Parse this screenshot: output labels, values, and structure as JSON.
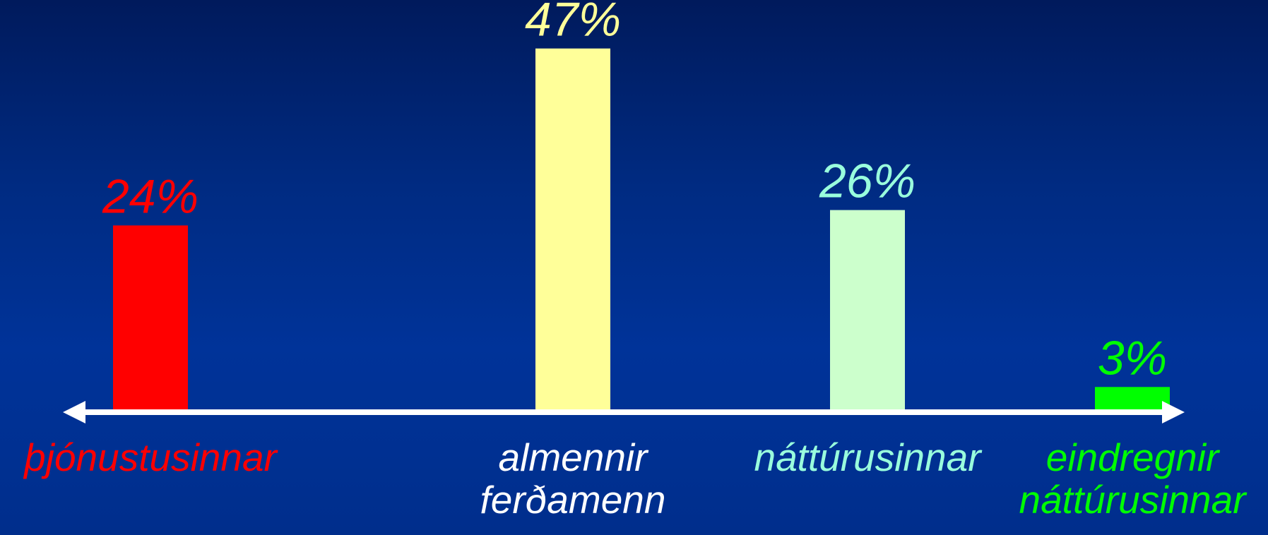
{
  "chart_data": {
    "type": "bar",
    "categories": [
      "þjónustusinnar",
      "almennir ferðamenn",
      "náttúrusinnar",
      "eindregnir náttúrusinnar"
    ],
    "values": [
      24,
      47,
      26,
      3
    ],
    "value_labels": [
      "24%",
      "47%",
      "26%",
      "3%"
    ],
    "colors": [
      "#ff0000",
      "#ffff99",
      "#ccffcc",
      "#00ff00"
    ],
    "value_label_colors": [
      "#ff0000",
      "#ffff99",
      "#99ffdd",
      "#00ff00"
    ],
    "category_colors": [
      "#ff0000",
      "#ffffff",
      "#99ffdd",
      "#00ff00"
    ],
    "ylim": [
      0,
      50
    ]
  }
}
